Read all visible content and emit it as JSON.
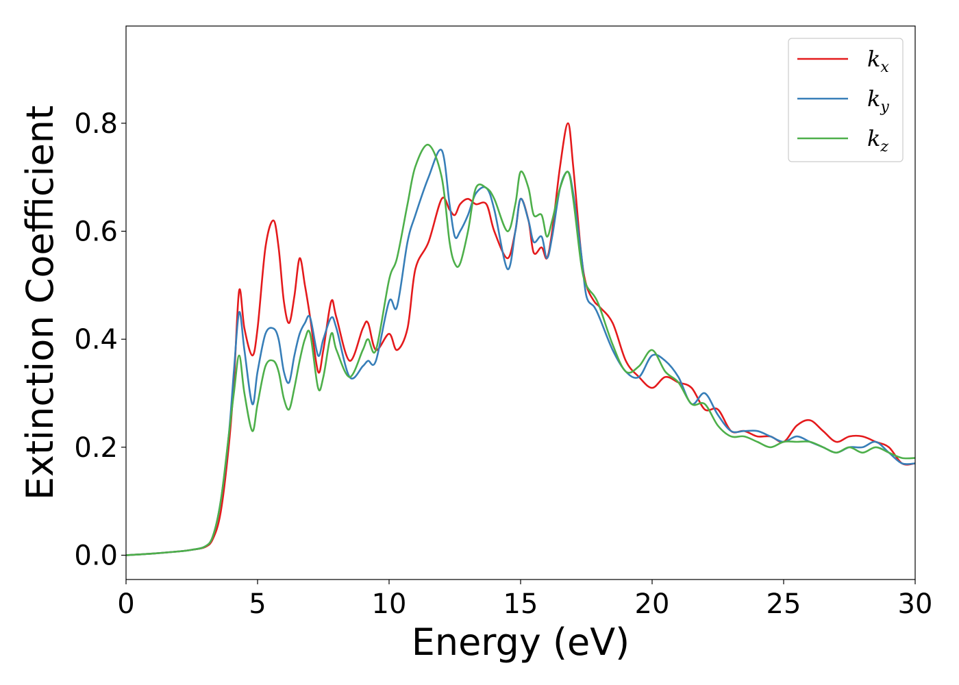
{
  "chart_data": {
    "type": "line",
    "title": "",
    "xlabel": "Energy (eV)",
    "ylabel": "Extinction Coefficient",
    "xlim": [
      0,
      30
    ],
    "ylim": [
      -0.045,
      0.98
    ],
    "xticks": [
      0,
      5,
      10,
      15,
      20,
      25,
      30
    ],
    "xtick_labels": [
      "0",
      "5",
      "10",
      "15",
      "20",
      "25",
      "30"
    ],
    "yticks": [
      0.0,
      0.2,
      0.4,
      0.6,
      0.8
    ],
    "ytick_labels": [
      "0.0",
      "0.2",
      "0.4",
      "0.6",
      "0.8"
    ],
    "grid": false,
    "legend_position": "top-right",
    "series": [
      {
        "name": "k_x",
        "label_base": "k",
        "label_sub": "x",
        "color": "#e41a1c",
        "x": [
          0,
          1,
          2,
          2.5,
          3,
          3.3,
          3.6,
          3.9,
          4.1,
          4.3,
          4.5,
          4.8,
          5.0,
          5.3,
          5.6,
          5.8,
          6.0,
          6.2,
          6.4,
          6.6,
          6.8,
          7.0,
          7.3,
          7.5,
          7.8,
          8.0,
          8.5,
          9.0,
          9.2,
          9.5,
          10.0,
          10.3,
          10.7,
          11.0,
          11.5,
          12.0,
          12.3,
          12.5,
          12.7,
          13.0,
          13.3,
          13.7,
          14.0,
          14.5,
          14.8,
          15.0,
          15.3,
          15.5,
          15.8,
          16.0,
          16.2,
          16.5,
          16.8,
          17.0,
          17.3,
          17.5,
          17.8,
          18.0,
          18.5,
          19.0,
          19.5,
          20.0,
          20.5,
          21.0,
          21.5,
          22.0,
          22.5,
          23.0,
          23.5,
          24.0,
          24.5,
          25.0,
          25.5,
          26.0,
          26.5,
          27.0,
          27.5,
          28.0,
          28.5,
          29.0,
          29.5,
          30.0
        ],
        "y": [
          0.0,
          0.003,
          0.007,
          0.01,
          0.015,
          0.03,
          0.08,
          0.2,
          0.32,
          0.49,
          0.42,
          0.37,
          0.42,
          0.57,
          0.62,
          0.57,
          0.47,
          0.43,
          0.48,
          0.55,
          0.5,
          0.44,
          0.34,
          0.38,
          0.47,
          0.44,
          0.36,
          0.42,
          0.43,
          0.38,
          0.41,
          0.38,
          0.42,
          0.53,
          0.58,
          0.66,
          0.64,
          0.63,
          0.65,
          0.66,
          0.65,
          0.65,
          0.6,
          0.55,
          0.6,
          0.66,
          0.62,
          0.56,
          0.57,
          0.55,
          0.6,
          0.72,
          0.8,
          0.72,
          0.56,
          0.5,
          0.47,
          0.46,
          0.43,
          0.36,
          0.33,
          0.31,
          0.33,
          0.32,
          0.31,
          0.27,
          0.27,
          0.23,
          0.23,
          0.22,
          0.22,
          0.21,
          0.24,
          0.25,
          0.23,
          0.21,
          0.22,
          0.22,
          0.21,
          0.2,
          0.17,
          0.17
        ]
      },
      {
        "name": "k_y",
        "label_base": "k",
        "label_sub": "y",
        "color": "#377eb8",
        "x": [
          0,
          1,
          2,
          2.5,
          3,
          3.3,
          3.6,
          3.9,
          4.1,
          4.3,
          4.5,
          4.8,
          5.0,
          5.3,
          5.6,
          5.8,
          6.0,
          6.2,
          6.4,
          6.6,
          6.8,
          7.0,
          7.3,
          7.5,
          7.8,
          8.0,
          8.5,
          9.0,
          9.2,
          9.5,
          10.0,
          10.3,
          10.7,
          11.0,
          11.5,
          12.0,
          12.3,
          12.5,
          12.7,
          13.0,
          13.3,
          13.7,
          14.0,
          14.5,
          14.8,
          15.0,
          15.3,
          15.5,
          15.8,
          16.0,
          16.2,
          16.5,
          16.8,
          17.0,
          17.3,
          17.5,
          17.8,
          18.0,
          18.5,
          19.0,
          19.5,
          20.0,
          20.5,
          21.0,
          21.5,
          22.0,
          22.5,
          23.0,
          23.5,
          24.0,
          24.5,
          25.0,
          25.5,
          26.0,
          26.5,
          27.0,
          27.5,
          28.0,
          28.5,
          29.0,
          29.5,
          30.0
        ],
        "y": [
          0.0,
          0.003,
          0.007,
          0.01,
          0.016,
          0.035,
          0.1,
          0.22,
          0.34,
          0.45,
          0.38,
          0.28,
          0.34,
          0.41,
          0.42,
          0.4,
          0.34,
          0.32,
          0.37,
          0.41,
          0.43,
          0.44,
          0.37,
          0.4,
          0.44,
          0.42,
          0.33,
          0.35,
          0.36,
          0.36,
          0.47,
          0.46,
          0.58,
          0.63,
          0.7,
          0.75,
          0.65,
          0.59,
          0.6,
          0.63,
          0.67,
          0.68,
          0.64,
          0.53,
          0.6,
          0.66,
          0.62,
          0.58,
          0.59,
          0.55,
          0.59,
          0.68,
          0.71,
          0.67,
          0.56,
          0.48,
          0.46,
          0.44,
          0.38,
          0.34,
          0.33,
          0.37,
          0.36,
          0.33,
          0.28,
          0.3,
          0.26,
          0.23,
          0.23,
          0.23,
          0.22,
          0.21,
          0.22,
          0.21,
          0.2,
          0.19,
          0.2,
          0.2,
          0.21,
          0.19,
          0.17,
          0.17
        ]
      },
      {
        "name": "k_z",
        "label_base": "k",
        "label_sub": "z",
        "color": "#4daf4a",
        "x": [
          0,
          1,
          2,
          2.5,
          3,
          3.3,
          3.6,
          3.9,
          4.1,
          4.3,
          4.5,
          4.8,
          5.0,
          5.3,
          5.6,
          5.8,
          6.0,
          6.2,
          6.4,
          6.6,
          6.8,
          7.0,
          7.3,
          7.5,
          7.8,
          8.0,
          8.5,
          9.0,
          9.2,
          9.5,
          10.0,
          10.3,
          10.7,
          11.0,
          11.5,
          12.0,
          12.3,
          12.5,
          12.7,
          13.0,
          13.3,
          13.7,
          14.0,
          14.5,
          14.8,
          15.0,
          15.3,
          15.5,
          15.8,
          16.0,
          16.2,
          16.5,
          16.8,
          17.0,
          17.3,
          17.5,
          17.8,
          18.0,
          18.5,
          19.0,
          19.5,
          20.0,
          20.5,
          21.0,
          21.5,
          22.0,
          22.5,
          23.0,
          23.5,
          24.0,
          24.5,
          25.0,
          25.5,
          26.0,
          26.5,
          27.0,
          27.5,
          28.0,
          28.5,
          29.0,
          29.5,
          30.0
        ],
        "y": [
          0.0,
          0.003,
          0.007,
          0.01,
          0.016,
          0.035,
          0.1,
          0.22,
          0.3,
          0.37,
          0.3,
          0.23,
          0.28,
          0.35,
          0.36,
          0.34,
          0.29,
          0.27,
          0.31,
          0.36,
          0.4,
          0.41,
          0.31,
          0.33,
          0.41,
          0.38,
          0.33,
          0.38,
          0.4,
          0.38,
          0.51,
          0.55,
          0.65,
          0.72,
          0.76,
          0.7,
          0.58,
          0.54,
          0.54,
          0.6,
          0.68,
          0.68,
          0.66,
          0.6,
          0.65,
          0.71,
          0.68,
          0.63,
          0.63,
          0.59,
          0.62,
          0.68,
          0.71,
          0.66,
          0.54,
          0.5,
          0.48,
          0.46,
          0.39,
          0.34,
          0.35,
          0.38,
          0.34,
          0.32,
          0.28,
          0.28,
          0.24,
          0.22,
          0.22,
          0.21,
          0.2,
          0.21,
          0.21,
          0.21,
          0.2,
          0.19,
          0.2,
          0.19,
          0.2,
          0.19,
          0.18,
          0.18
        ]
      }
    ]
  }
}
